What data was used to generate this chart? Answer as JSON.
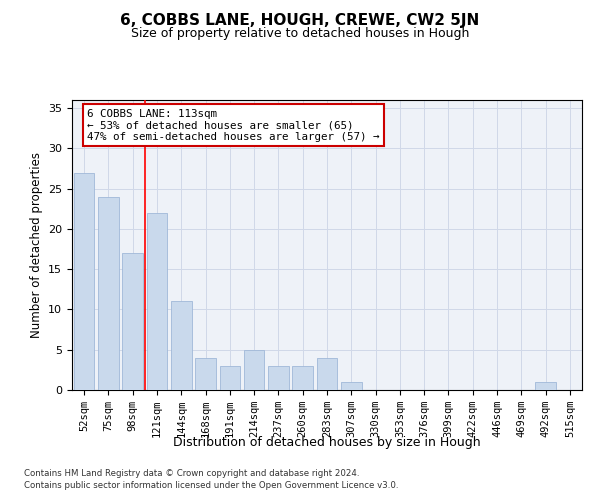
{
  "title": "6, COBBS LANE, HOUGH, CREWE, CW2 5JN",
  "subtitle": "Size of property relative to detached houses in Hough",
  "xlabel": "Distribution of detached houses by size in Hough",
  "ylabel": "Number of detached properties",
  "categories": [
    "52sqm",
    "75sqm",
    "98sqm",
    "121sqm",
    "144sqm",
    "168sqm",
    "191sqm",
    "214sqm",
    "237sqm",
    "260sqm",
    "283sqm",
    "307sqm",
    "330sqm",
    "353sqm",
    "376sqm",
    "399sqm",
    "422sqm",
    "446sqm",
    "469sqm",
    "492sqm",
    "515sqm"
  ],
  "values": [
    27,
    24,
    17,
    22,
    11,
    4,
    3,
    5,
    3,
    3,
    4,
    1,
    0,
    0,
    0,
    0,
    0,
    0,
    0,
    1,
    0
  ],
  "bar_color": "#c9d9ec",
  "bar_edge_color": "#a0b8d8",
  "red_line_x": 2.5,
  "annotation_lines": [
    "6 COBBS LANE: 113sqm",
    "← 53% of detached houses are smaller (65)",
    "47% of semi-detached houses are larger (57) →"
  ],
  "annotation_box_color": "#ffffff",
  "annotation_box_edge": "#cc0000",
  "ylim": [
    0,
    36
  ],
  "yticks": [
    0,
    5,
    10,
    15,
    20,
    25,
    30,
    35
  ],
  "grid_color": "#d0d8e8",
  "background_color": "#eef2f8",
  "footer1": "Contains HM Land Registry data © Crown copyright and database right 2024.",
  "footer2": "Contains public sector information licensed under the Open Government Licence v3.0."
}
